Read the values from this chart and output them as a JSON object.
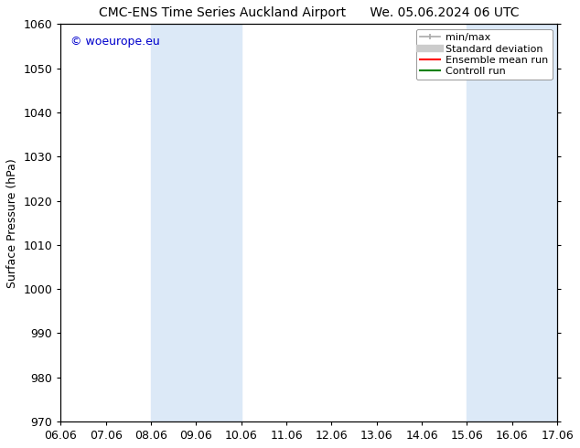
{
  "title_left": "CMC-ENS Time Series Auckland Airport",
  "title_right": "We. 05.06.2024 06 UTC",
  "ylabel": "Surface Pressure (hPa)",
  "ylim": [
    970,
    1060
  ],
  "yticks": [
    970,
    980,
    990,
    1000,
    1010,
    1020,
    1030,
    1040,
    1050,
    1060
  ],
  "xtick_labels": [
    "06.06",
    "07.06",
    "08.06",
    "09.06",
    "10.06",
    "11.06",
    "12.06",
    "13.06",
    "14.06",
    "15.06",
    "16.06",
    "17.06"
  ],
  "watermark": "© woeurope.eu",
  "watermark_color": "#0000cc",
  "shaded_regions": [
    {
      "xstart": 2,
      "xend": 4
    },
    {
      "xstart": 9,
      "xend": 11
    }
  ],
  "shaded_color": "#dce9f7",
  "legend_entries": [
    {
      "label": "min/max",
      "color": "#aaaaaa",
      "lw": 1.2
    },
    {
      "label": "Standard deviation",
      "color": "#cccccc",
      "lw": 6
    },
    {
      "label": "Ensemble mean run",
      "color": "#ff0000",
      "lw": 1.5
    },
    {
      "label": "Controll run",
      "color": "#008000",
      "lw": 1.5
    }
  ],
  "bg_color": "#ffffff",
  "spine_color": "#000000",
  "font_size": 9,
  "title_font_size": 10
}
